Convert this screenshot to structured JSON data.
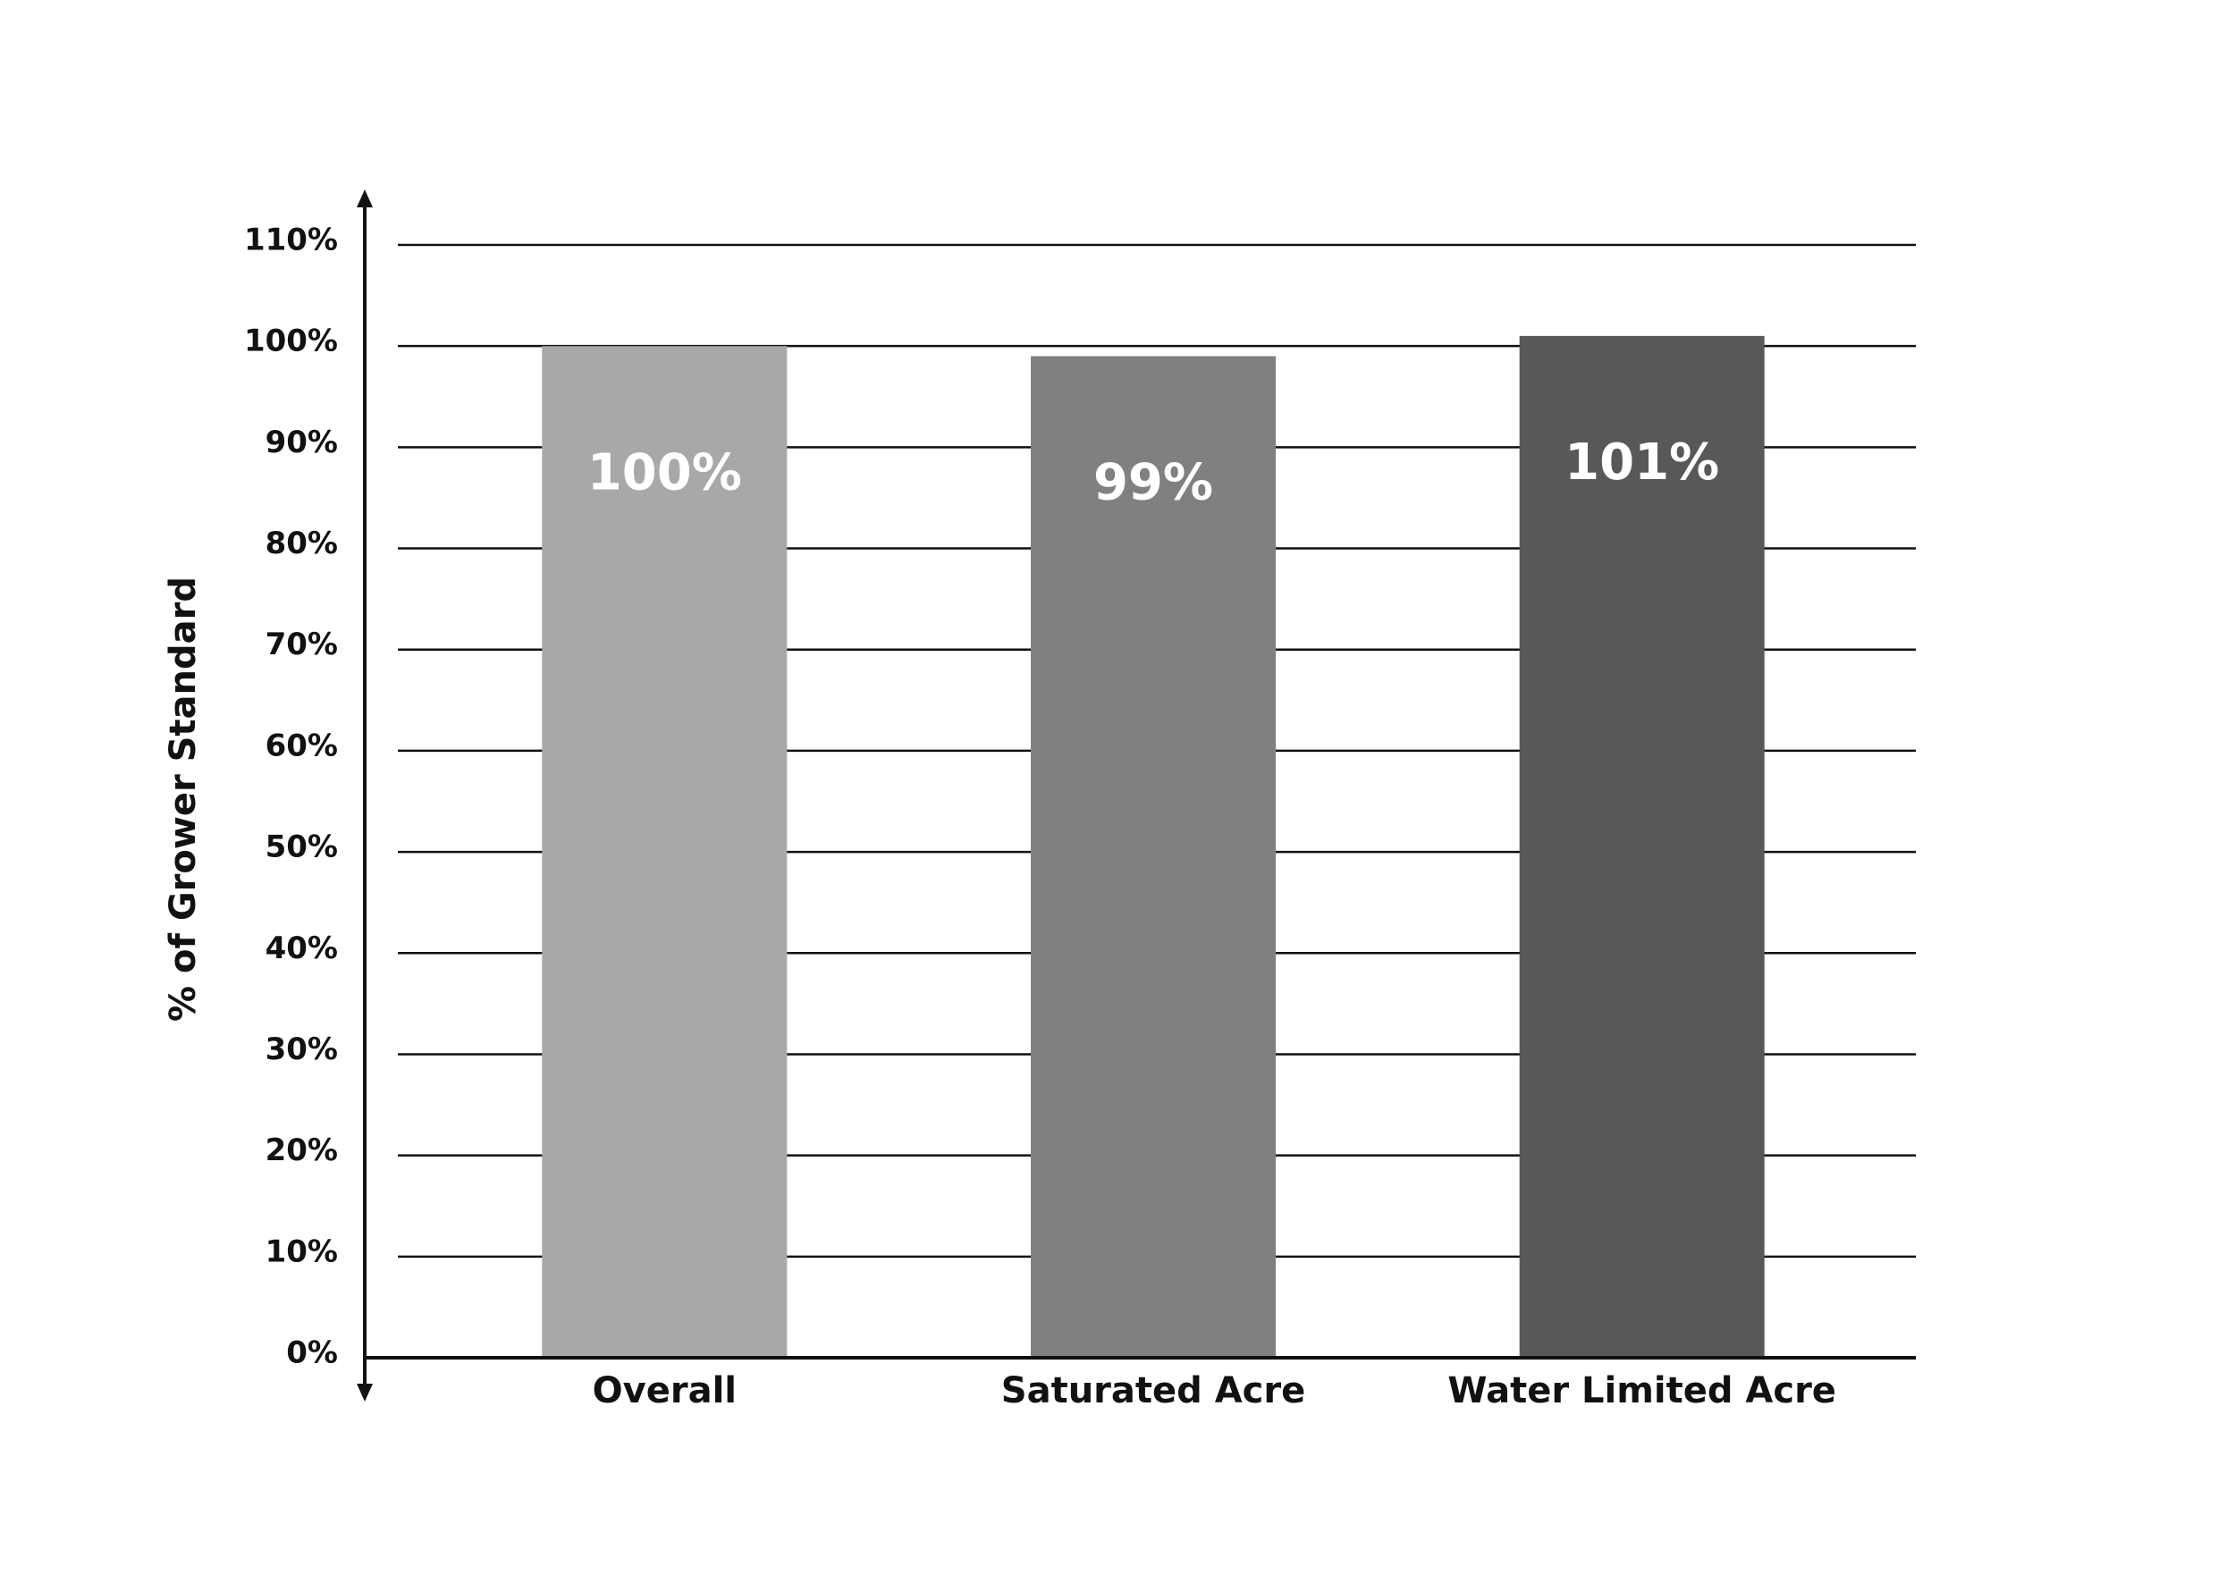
{
  "chart_data": {
    "type": "bar",
    "ylabel": "% of Grower Standard",
    "categories": [
      "Overall",
      "Saturated Acre",
      "Water Limited Acre"
    ],
    "values": [
      100,
      99,
      101
    ],
    "value_labels": [
      "100%",
      "99%",
      "101%"
    ],
    "colors": [
      "#a8a8ab",
      "#808083",
      "#58585a"
    ],
    "ylim": [
      0,
      110
    ],
    "yticks": [
      {
        "value": 0,
        "label": "0%"
      },
      {
        "value": 10,
        "label": "10%"
      },
      {
        "value": 20,
        "label": "20%"
      },
      {
        "value": 30,
        "label": "30%"
      },
      {
        "value": 40,
        "label": "40%"
      },
      {
        "value": 50,
        "label": "50%"
      },
      {
        "value": 60,
        "label": "60%"
      },
      {
        "value": 70,
        "label": "70%"
      },
      {
        "value": 80,
        "label": "80%"
      },
      {
        "value": 90,
        "label": "90%"
      },
      {
        "value": 100,
        "label": "100%"
      },
      {
        "value": 110,
        "label": "110%"
      }
    ],
    "grid": true
  }
}
